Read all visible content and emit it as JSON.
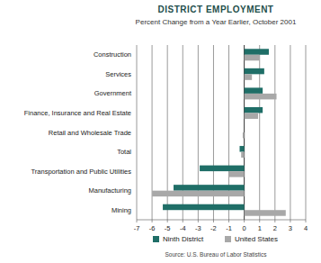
{
  "chart_data": {
    "type": "bar",
    "orientation": "horizontal",
    "title": "DISTRICT EMPLOYMENT",
    "subtitle": "Percent Change from a Year Earlier, October 2001",
    "source": "Source: U.S. Bureau of Labor Statistics",
    "categories": [
      "Construction",
      "Services",
      "Government",
      "Finance, Insurance and Real Estate",
      "Retail and Wholesale Trade",
      "Total",
      "Transportation and Public Utilities",
      "Manufacturing",
      "Mining"
    ],
    "series": [
      {
        "name": "Ninth District",
        "color": "#1f6e67",
        "values": [
          1.6,
          1.3,
          1.2,
          1.2,
          0,
          -0.3,
          -2.9,
          -4.6,
          -5.3
        ]
      },
      {
        "name": "United States",
        "color": "#a8a8a8",
        "values": [
          1.0,
          0.5,
          2.1,
          0.9,
          -0.1,
          -0.2,
          -1.0,
          -6.0,
          2.7
        ]
      }
    ],
    "xlim": [
      -7,
      4
    ],
    "xticks": [
      -7,
      -6,
      -5,
      -4,
      -3,
      -2,
      -1,
      0,
      1,
      2,
      3,
      4
    ],
    "grid": true,
    "legend": "bottom"
  }
}
